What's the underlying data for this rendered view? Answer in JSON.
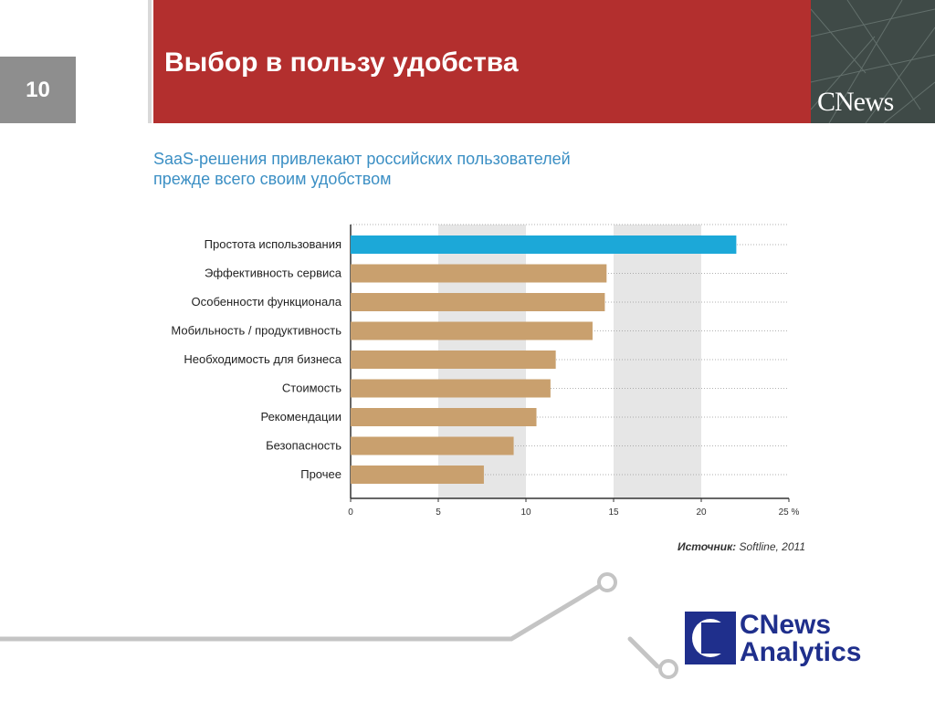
{
  "slide": {
    "number": "10",
    "title": "Выбор в пользу удобства",
    "logo_text": "CNews"
  },
  "subtitle": [
    "SaaS-решения привлекают российских пользователей",
    "прежде всего своим удобством"
  ],
  "source": {
    "label": "Источник:",
    "value": " Softline, 2011"
  },
  "footer_logo": {
    "line1": "CNews",
    "line2": "Analytics"
  },
  "colors": {
    "band": "#b32f2e",
    "highlight": "#1ca8d8",
    "bar": "#c9a06e",
    "logo_blue": "#1f2f8c"
  },
  "chart_data": {
    "type": "bar",
    "orientation": "horizontal",
    "categories": [
      "Простота использования",
      "Эффективность сервиса",
      "Особенности функционала",
      "Мобильность / продуктивность",
      "Необходимость для бизнеса",
      "Стоимость",
      "Рекомендации",
      "Безопасность",
      "Прочее"
    ],
    "values": [
      22,
      14.6,
      14.5,
      13.8,
      11.7,
      11.4,
      10.6,
      9.3,
      7.6
    ],
    "xlim": [
      0,
      25
    ],
    "xticks": [
      "0",
      "5",
      "10",
      "15",
      "20",
      "25 %"
    ],
    "highlight_index": 0
  }
}
